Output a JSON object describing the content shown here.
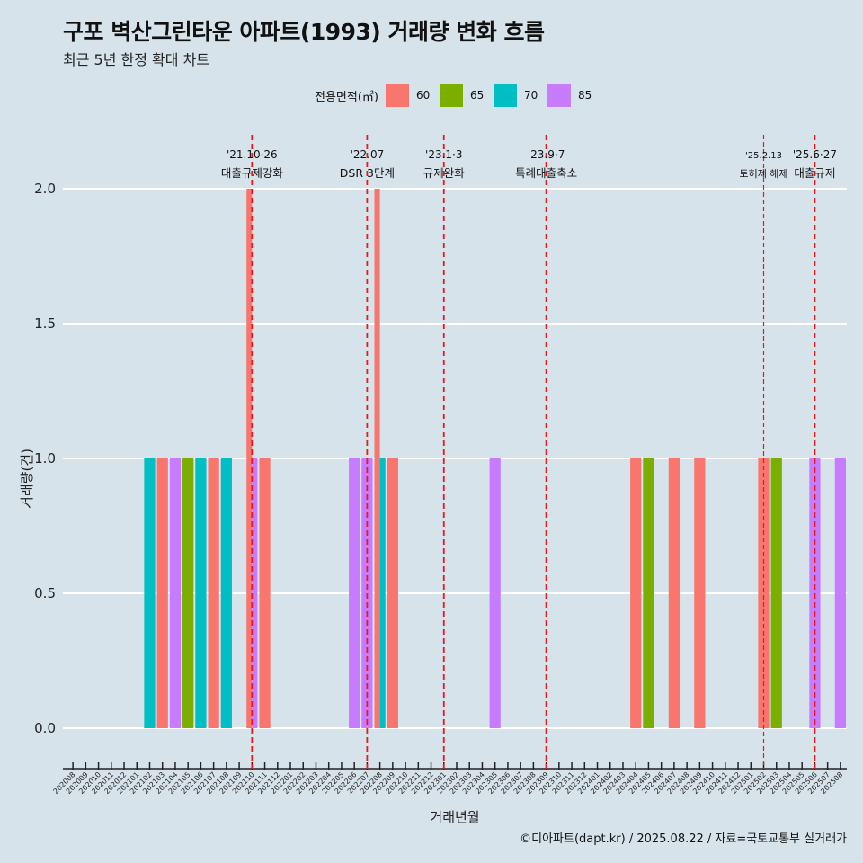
{
  "title": "구포 벽산그린타운 아파트(1993) 거래량 변화 흐름",
  "subtitle": "최근 5년 한정 확대 차트",
  "caption": "©디아파트(dapt.kr) / 2025.08.22 / 자료=국토교통부 실거래가",
  "colors": {
    "background": "#d6e3ea",
    "gridline": "#ffffff",
    "vline": "#e41a1c"
  },
  "chart_data": {
    "type": "bar",
    "xlabel": "거래년월",
    "ylabel": "거래량(건)",
    "ylim": [
      -0.15,
      2.2
    ],
    "y_ticks": [
      "0.0",
      "0.5",
      "1.0",
      "1.5",
      "2.0"
    ],
    "y_tick_values": [
      0,
      0.5,
      1,
      1.5,
      2
    ],
    "grid": true,
    "legend": {
      "title": "전용면적(㎡)",
      "placement": "top"
    },
    "categories": [
      "202008",
      "202009",
      "202010",
      "202011",
      "202012",
      "202101",
      "202102",
      "202103",
      "202104",
      "202105",
      "202106",
      "202107",
      "202108",
      "202109",
      "202110",
      "202111",
      "202112",
      "202201",
      "202202",
      "202203",
      "202204",
      "202205",
      "202206",
      "202207",
      "202208",
      "202209",
      "202210",
      "202211",
      "202212",
      "202301",
      "202302",
      "202303",
      "202304",
      "202305",
      "202306",
      "202307",
      "202308",
      "202309",
      "202310",
      "202311",
      "202312",
      "202401",
      "202402",
      "202403",
      "202404",
      "202405",
      "202406",
      "202407",
      "202408",
      "202409",
      "202410",
      "202411",
      "202412",
      "202501",
      "202502",
      "202503",
      "202504",
      "202505",
      "202506",
      "202507",
      "202508"
    ],
    "series": [
      {
        "name": "60",
        "color": "#F8766D",
        "points": [
          {
            "x": "202103",
            "y": 1
          },
          {
            "x": "202107",
            "y": 1
          },
          {
            "x": "202110",
            "y": 2
          },
          {
            "x": "202111",
            "y": 1
          },
          {
            "x": "202208",
            "y": 2
          },
          {
            "x": "202209",
            "y": 1
          },
          {
            "x": "202404",
            "y": 1
          },
          {
            "x": "202407",
            "y": 1
          },
          {
            "x": "202409",
            "y": 1
          },
          {
            "x": "202502",
            "y": 1
          }
        ]
      },
      {
        "name": "65",
        "color": "#7CAE00",
        "points": [
          {
            "x": "202105",
            "y": 1
          },
          {
            "x": "202405",
            "y": 1
          },
          {
            "x": "202503",
            "y": 1
          }
        ]
      },
      {
        "name": "70",
        "color": "#00BFC4",
        "points": [
          {
            "x": "202102",
            "y": 1
          },
          {
            "x": "202106",
            "y": 1
          },
          {
            "x": "202108",
            "y": 1
          },
          {
            "x": "202208",
            "y": 1
          }
        ]
      },
      {
        "name": "85",
        "color": "#C77CFF",
        "points": [
          {
            "x": "202104",
            "y": 1
          },
          {
            "x": "202110",
            "y": 1
          },
          {
            "x": "202206",
            "y": 1
          },
          {
            "x": "202207",
            "y": 1
          },
          {
            "x": "202305",
            "y": 1
          },
          {
            "x": "202506",
            "y": 1
          },
          {
            "x": "202508",
            "y": 1
          }
        ]
      }
    ],
    "annotations": [
      {
        "x": "202110",
        "date": "'21.10·26",
        "label": "대출규제강화",
        "style": "dashed"
      },
      {
        "x": "202207",
        "date": "'22.07",
        "label": "DSR 3단계",
        "style": "dashed"
      },
      {
        "x": "202301",
        "date": "'23.1·3",
        "label": "규제완화",
        "style": "dashed"
      },
      {
        "x": "202309",
        "date": "'23.9·7",
        "label": "특례대출축소",
        "style": "dashed"
      },
      {
        "x": "202502",
        "date": "'25.2.13",
        "label": "토허제 해제",
        "style": "thin-dashed"
      },
      {
        "x": "202506",
        "date": "'25.6·27",
        "label": "대출규제",
        "style": "dashed"
      }
    ]
  }
}
